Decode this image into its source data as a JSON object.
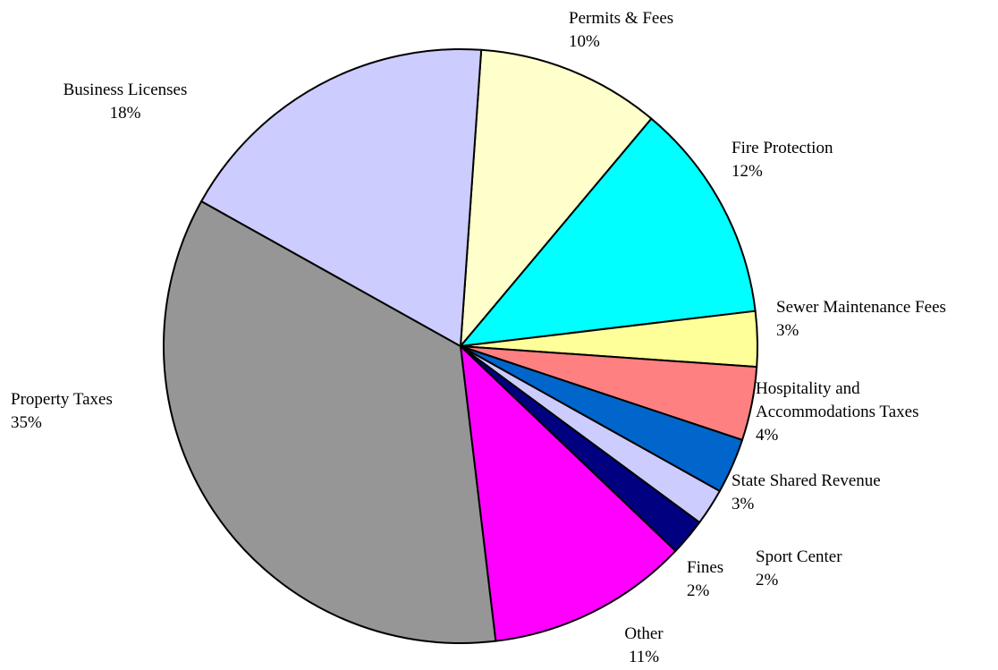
{
  "chart_data": {
    "type": "pie",
    "labels": [
      "Permits & Fees",
      "Fire Protection",
      "Sewer Maintenance Fees",
      "Hospitality and Accommodations Taxes",
      "State Shared Revenue",
      "Sport Center",
      "Fines",
      "Other",
      "Property Taxes",
      "Business Licenses"
    ],
    "values": [
      10,
      12,
      3,
      4,
      3,
      2,
      2,
      11,
      35,
      18
    ],
    "value_labels": [
      "10%",
      "12%",
      "3%",
      "4%",
      "3%",
      "2%",
      "2%",
      "11%",
      "35%",
      "18%"
    ],
    "colors": [
      "#ffffcc",
      "#00ffff",
      "#ffff99",
      "#ff8080",
      "#0066cc",
      "#ccccff",
      "#000080",
      "#ff00ff",
      "#969696",
      "#ccccff"
    ]
  }
}
